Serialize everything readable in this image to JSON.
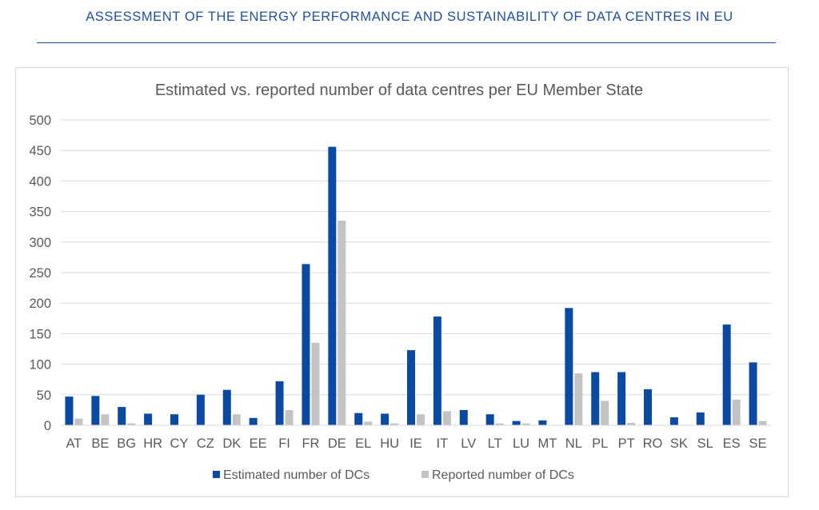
{
  "header": {
    "title": "ASSESSMENT OF THE ENERGY PERFORMANCE AND SUSTAINABILITY OF DATA CENTRES IN EU"
  },
  "colors": {
    "estimated": "#0b4aa2",
    "reported": "#c3c3c3",
    "gridline": "#d9d9d9",
    "axis_text": "#595959"
  },
  "chart_data": {
    "type": "bar",
    "title": "Estimated vs. reported number of data centres per EU Member State",
    "xlabel": "",
    "ylabel": "",
    "ylim": [
      0,
      500
    ],
    "yticks": [
      "500",
      "450",
      "400",
      "350",
      "300",
      "250",
      "200",
      "150",
      "100",
      "50",
      "0"
    ],
    "grid": true,
    "legend_position": "bottom",
    "categories": [
      "AT",
      "BE",
      "BG",
      "HR",
      "CY",
      "CZ",
      "DK",
      "EE",
      "FI",
      "FR",
      "DE",
      "EL",
      "HU",
      "IE",
      "IT",
      "LV",
      "LT",
      "LU",
      "MT",
      "NL",
      "PL",
      "PT",
      "RO",
      "SK",
      "SL",
      "ES",
      "SE"
    ],
    "series": [
      {
        "name": "Estimated number of DCs",
        "values": [
          47,
          48,
          30,
          19,
          18,
          50,
          58,
          12,
          72,
          264,
          456,
          20,
          19,
          123,
          178,
          25,
          18,
          7,
          8,
          192,
          87,
          87,
          59,
          13,
          21,
          165,
          103
        ]
      },
      {
        "name": "Reported number of DCs",
        "values": [
          11,
          18,
          3,
          0,
          0,
          0,
          18,
          0,
          25,
          135,
          335,
          6,
          3,
          18,
          23,
          0,
          3,
          3,
          0,
          85,
          40,
          4,
          0,
          0,
          0,
          42,
          7
        ]
      }
    ]
  }
}
